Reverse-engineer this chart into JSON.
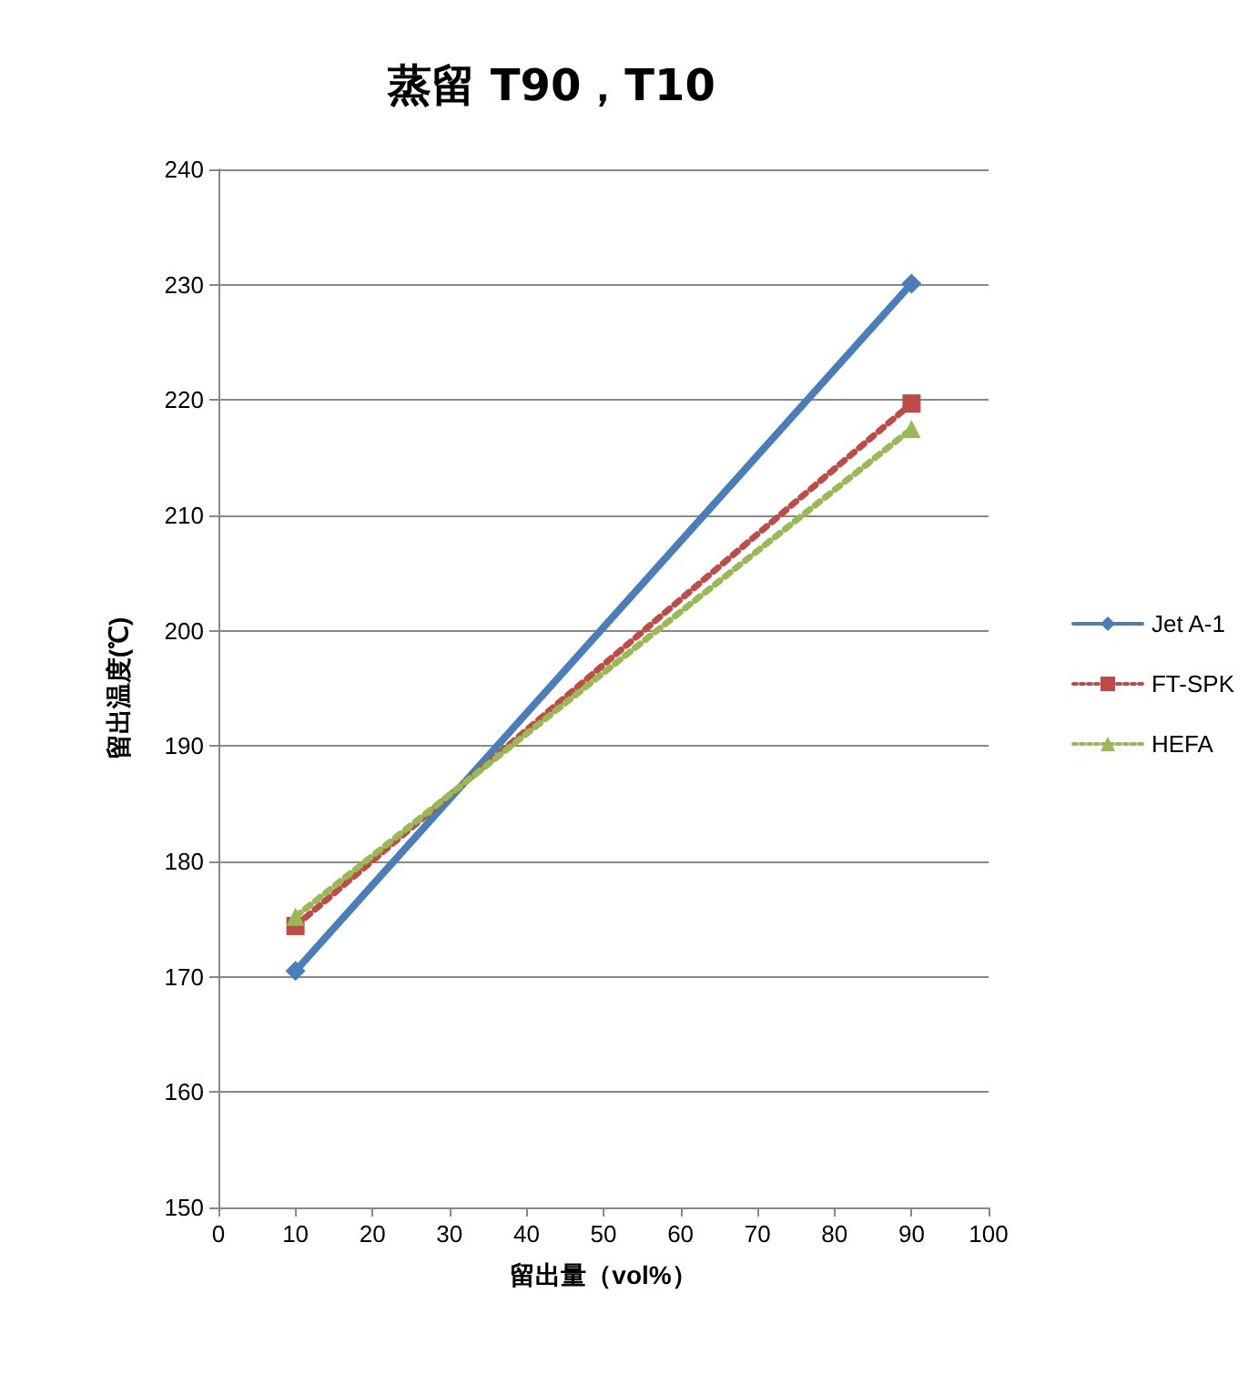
{
  "chart_data": {
    "type": "line",
    "title": "蒸留 T90，T10",
    "xlabel": "留出量（vol%）",
    "ylabel": "留出温度(℃)",
    "x": [
      10,
      90
    ],
    "series": [
      {
        "name": "Jet A-1",
        "color": "#4a7ebb",
        "values": [
          170.5,
          230.1
        ],
        "marker": "diamond",
        "line_style": "solid"
      },
      {
        "name": "FT-SPK",
        "color": "#be4b48",
        "values": [
          174.4,
          219.7
        ],
        "marker": "square",
        "line_style": "dotted"
      },
      {
        "name": "HEFA",
        "color": "#98b954",
        "values": [
          175.2,
          217.5
        ],
        "marker": "triangle",
        "line_style": "dotted"
      }
    ],
    "xlim": [
      0,
      100
    ],
    "xticks": [
      0,
      10,
      20,
      30,
      40,
      50,
      60,
      70,
      80,
      90,
      100
    ],
    "ylim": [
      150,
      240
    ],
    "yticks": [
      150,
      160,
      170,
      180,
      190,
      200,
      210,
      220,
      230,
      240
    ],
    "grid": "y",
    "legend": "right"
  }
}
